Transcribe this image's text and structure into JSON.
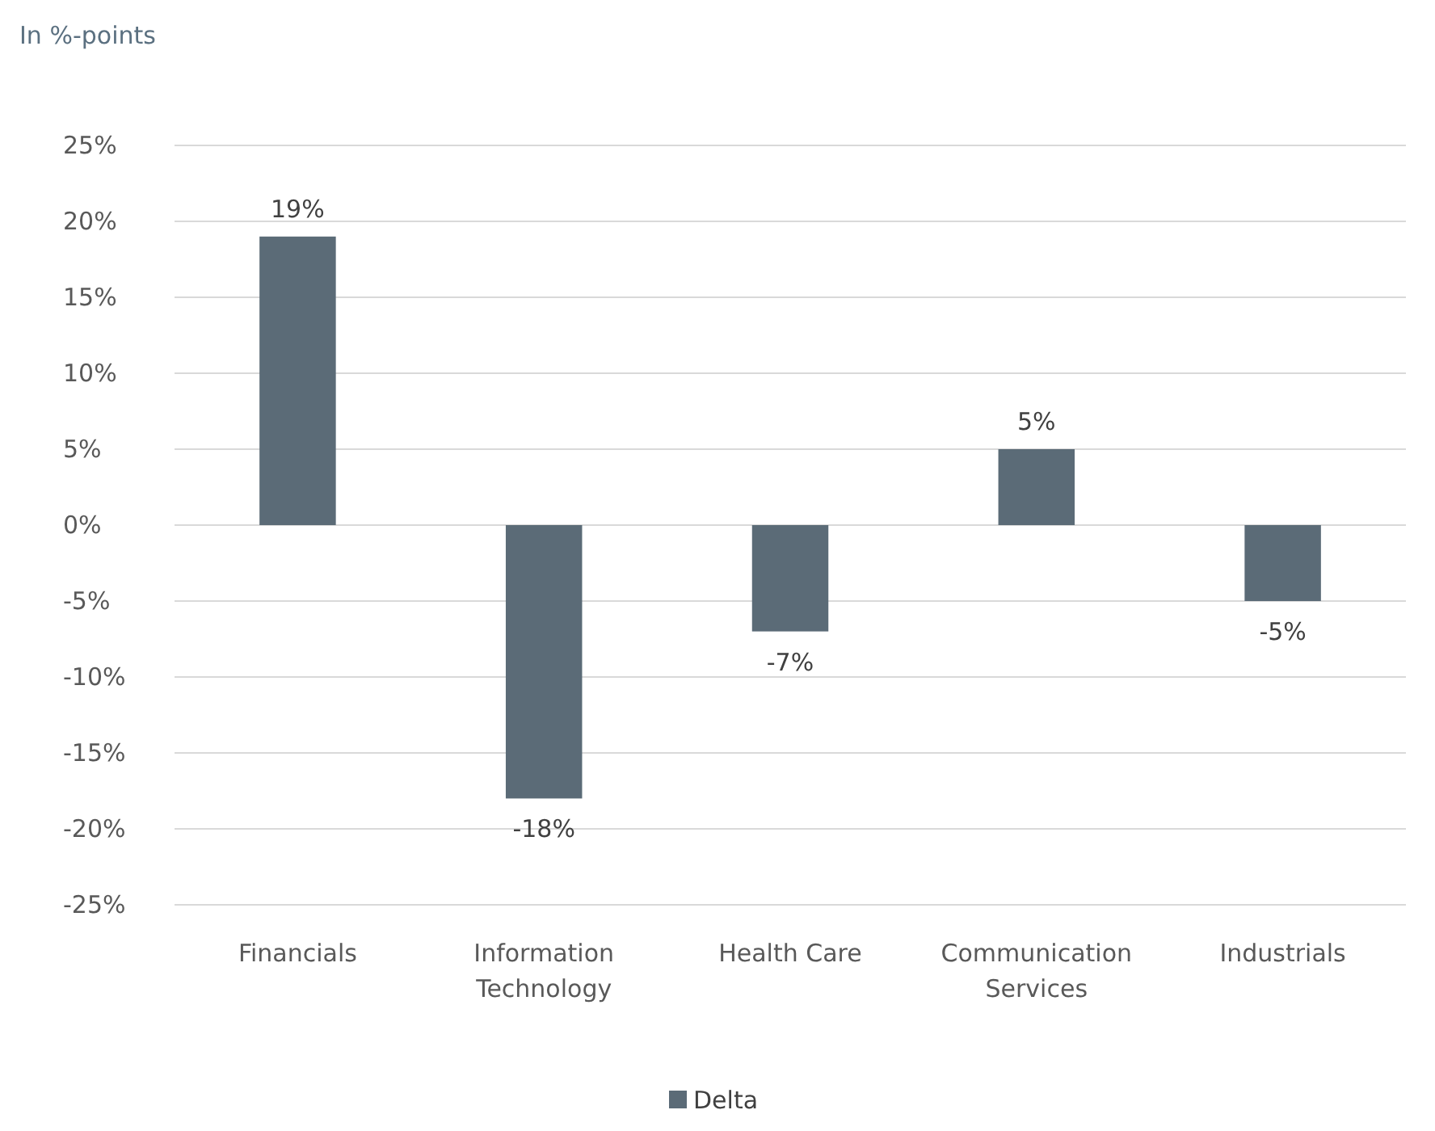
{
  "chart_data": {
    "type": "bar",
    "title": "In %-points",
    "categories": [
      "Financials",
      "Information Technology",
      "Health Care",
      "Communication Services",
      "Industrials"
    ],
    "series": [
      {
        "name": "Delta",
        "color": "#5b6b77",
        "values": [
          19,
          -18,
          -7,
          5,
          -5
        ],
        "value_labels": [
          "19%",
          "-18%",
          "-7%",
          "5%",
          "-5%"
        ]
      }
    ],
    "ylim": [
      -25,
      25
    ],
    "yticks": [
      {
        "value": -25,
        "label": "-25%"
      },
      {
        "value": -20,
        "label": "-20%"
      },
      {
        "value": -15,
        "label": "-15%"
      },
      {
        "value": -10,
        "label": "-10%"
      },
      {
        "value": -5,
        "label": "-5%"
      },
      {
        "value": 0,
        "label": "0%"
      },
      {
        "value": 5,
        "label": "5%"
      },
      {
        "value": 10,
        "label": "10%"
      },
      {
        "value": 15,
        "label": "15%"
      },
      {
        "value": 20,
        "label": "20%"
      },
      {
        "value": 25,
        "label": "25%"
      }
    ],
    "grid": "y",
    "legend": "bottom"
  }
}
